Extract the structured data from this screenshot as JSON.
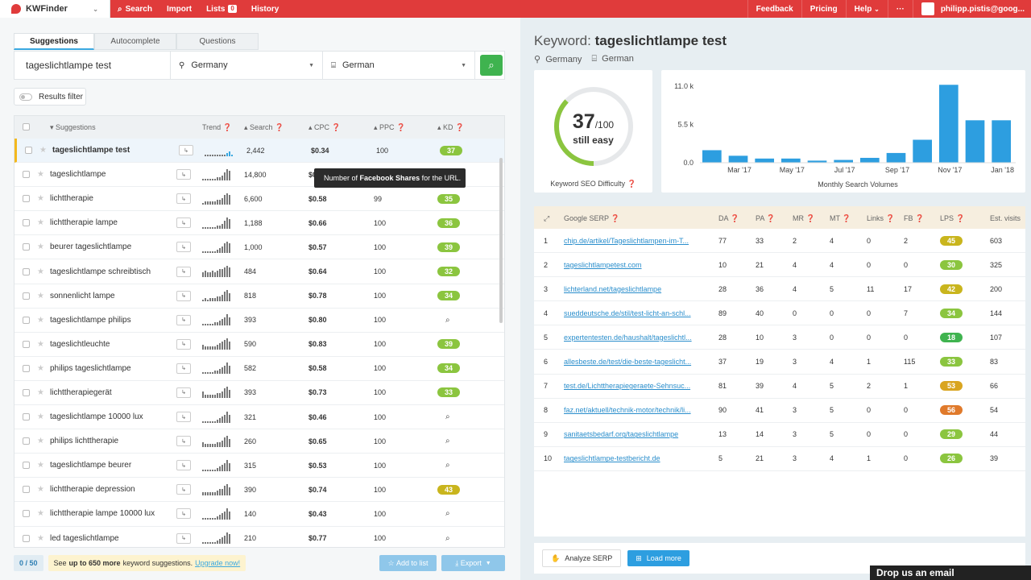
{
  "app": {
    "name": "KWFinder"
  },
  "nav": {
    "search": "Search",
    "import": "Import",
    "lists": "Lists",
    "lists_count": "0",
    "history": "History"
  },
  "nav_right": {
    "feedback": "Feedback",
    "pricing": "Pricing",
    "help": "Help",
    "more": "···",
    "user": "philipp.pistis@goog..."
  },
  "tabs": [
    "Suggestions",
    "Autocomplete",
    "Questions"
  ],
  "search": {
    "keyword": "tageslichtlampe test",
    "location": "Germany",
    "language": "German"
  },
  "results_filter": "Results filter",
  "columns": {
    "suggestions": "Suggestions",
    "trend": "Trend",
    "search": "Search",
    "cpc": "CPC",
    "ppc": "PPC",
    "kd": "KD"
  },
  "keywords": [
    {
      "kw": "tageslichtlampe test",
      "search": "2,442",
      "cpc": "$0.34",
      "ppc": "100",
      "kd": "37",
      "kd_color": "#8bc53f",
      "trend": [
        1,
        1,
        1,
        1,
        1,
        1,
        1,
        1,
        1,
        2,
        3,
        1
      ]
    },
    {
      "kw": "tageslichtlampe",
      "search": "14,800",
      "cpc": "$0.74",
      "ppc": "100",
      "kd": "32",
      "kd_color": "#8bc53f",
      "trend": [
        1,
        1,
        1,
        1,
        1,
        1,
        2,
        2,
        3,
        5,
        7,
        6
      ]
    },
    {
      "kw": "lichttherapie",
      "search": "6,600",
      "cpc": "$0.58",
      "ppc": "99",
      "kd": "35",
      "kd_color": "#8bc53f",
      "trend": [
        1,
        2,
        2,
        2,
        2,
        2,
        3,
        3,
        4,
        6,
        7,
        6
      ]
    },
    {
      "kw": "lichttherapie lampe",
      "search": "1,188",
      "cpc": "$0.66",
      "ppc": "100",
      "kd": "36",
      "kd_color": "#8bc53f",
      "trend": [
        1,
        1,
        1,
        1,
        1,
        1,
        2,
        2,
        3,
        5,
        7,
        6
      ]
    },
    {
      "kw": "beurer tageslichtlampe",
      "search": "1,000",
      "cpc": "$0.57",
      "ppc": "100",
      "kd": "39",
      "kd_color": "#8bc53f",
      "trend": [
        1,
        1,
        1,
        1,
        1,
        1,
        2,
        3,
        4,
        6,
        7,
        6
      ]
    },
    {
      "kw": "tageslichtlampe schreibtisch",
      "search": "484",
      "cpc": "$0.64",
      "ppc": "100",
      "kd": "32",
      "kd_color": "#8bc53f",
      "trend": [
        3,
        4,
        3,
        3,
        4,
        3,
        4,
        5,
        5,
        6,
        7,
        6
      ]
    },
    {
      "kw": "sonnenlicht lampe",
      "search": "818",
      "cpc": "$0.78",
      "ppc": "100",
      "kd": "34",
      "kd_color": "#8bc53f",
      "trend": [
        1,
        2,
        1,
        2,
        2,
        2,
        3,
        3,
        4,
        6,
        7,
        5
      ]
    },
    {
      "kw": "tageslichtlampe philips",
      "search": "393",
      "cpc": "$0.80",
      "ppc": "100",
      "kd": "",
      "kd_color": "",
      "trend": [
        1,
        1,
        1,
        1,
        1,
        2,
        2,
        3,
        4,
        5,
        7,
        5
      ]
    },
    {
      "kw": "tageslichtleuchte",
      "search": "590",
      "cpc": "$0.83",
      "ppc": "100",
      "kd": "39",
      "kd_color": "#8bc53f",
      "trend": [
        3,
        2,
        2,
        2,
        2,
        2,
        3,
        4,
        5,
        6,
        7,
        5
      ]
    },
    {
      "kw": "philips tageslichtlampe",
      "search": "582",
      "cpc": "$0.58",
      "ppc": "100",
      "kd": "34",
      "kd_color": "#8bc53f",
      "trend": [
        1,
        1,
        1,
        1,
        1,
        2,
        2,
        3,
        4,
        5,
        7,
        5
      ]
    },
    {
      "kw": "lichttherapiegerät",
      "search": "393",
      "cpc": "$0.73",
      "ppc": "100",
      "kd": "33",
      "kd_color": "#8bc53f",
      "trend": [
        4,
        2,
        2,
        2,
        2,
        2,
        3,
        3,
        4,
        6,
        7,
        5
      ]
    },
    {
      "kw": "tageslichtlampe 10000 lux",
      "search": "321",
      "cpc": "$0.46",
      "ppc": "100",
      "kd": "",
      "kd_color": "",
      "trend": [
        1,
        1,
        1,
        1,
        1,
        1,
        2,
        3,
        4,
        5,
        7,
        5
      ]
    },
    {
      "kw": "philips lichttherapie",
      "search": "260",
      "cpc": "$0.65",
      "ppc": "100",
      "kd": "",
      "kd_color": "",
      "trend": [
        3,
        2,
        2,
        2,
        2,
        2,
        3,
        3,
        4,
        6,
        7,
        5
      ]
    },
    {
      "kw": "tageslichtlampe beurer",
      "search": "315",
      "cpc": "$0.53",
      "ppc": "100",
      "kd": "",
      "kd_color": "",
      "trend": [
        1,
        1,
        1,
        1,
        1,
        1,
        2,
        3,
        4,
        5,
        7,
        5
      ]
    },
    {
      "kw": "lichttherapie depression",
      "search": "390",
      "cpc": "$0.74",
      "ppc": "100",
      "kd": "43",
      "kd_color": "#c9b51d",
      "trend": [
        2,
        2,
        2,
        2,
        2,
        2,
        3,
        4,
        4,
        6,
        7,
        5
      ]
    },
    {
      "kw": "lichttherapie lampe 10000 lux",
      "search": "140",
      "cpc": "$0.43",
      "ppc": "100",
      "kd": "",
      "kd_color": "",
      "trend": [
        1,
        1,
        1,
        1,
        1,
        1,
        2,
        3,
        4,
        5,
        7,
        5
      ]
    },
    {
      "kw": "led tageslichtlampe",
      "search": "210",
      "cpc": "$0.77",
      "ppc": "100",
      "kd": "",
      "kd_color": "",
      "trend": [
        1,
        1,
        1,
        1,
        1,
        1,
        2,
        3,
        4,
        5,
        7,
        6
      ]
    }
  ],
  "footer": {
    "counter": "0 / 50",
    "upsell_pre": "See",
    "upsell_bold": "up to 650 more",
    "upsell_post": "keyword suggestions.",
    "upsell_link": "Upgrade now!",
    "add_to_list": "Add to list",
    "export": "Export"
  },
  "detail": {
    "keyword_label": "Keyword:",
    "keyword": "tageslichtlampe test",
    "location": "Germany",
    "language": "German"
  },
  "kd": {
    "value": 37,
    "max": "/100",
    "label": "still easy",
    "caption": "Keyword SEO Difficulty",
    "color": "#8bc53f"
  },
  "chart_data": {
    "type": "bar",
    "categories": [
      "Feb '17",
      "Mar '17",
      "Apr '17",
      "May '17",
      "Jun '17",
      "Jul '17",
      "Aug '17",
      "Sep '17",
      "Oct '17",
      "Nov '17",
      "Dec '17",
      "Jan '18"
    ],
    "tick_labels": [
      "Mar '17",
      "May '17",
      "Jul '17",
      "Sep '17",
      "Nov '17",
      "Jan '18"
    ],
    "values": [
      1800,
      1000,
      600,
      600,
      300,
      400,
      700,
      1400,
      3300,
      11200,
      6100,
      6100
    ],
    "yticks": [
      "0.0",
      "5.5 k",
      "11.0 k"
    ],
    "ylim": [
      0,
      11000
    ],
    "xlabel": "Monthly Search Volumes",
    "color": "#2d9ee0"
  },
  "tooltip": {
    "pre": "Number of",
    "bold": "Facebook Shares",
    "post": "for the URL."
  },
  "serp_columns": {
    "serp": "Google SERP",
    "da": "DA",
    "pa": "PA",
    "mr": "MR",
    "mt": "MT",
    "links": "Links",
    "fb": "FB",
    "lps": "LPS",
    "visits": "Est. visits"
  },
  "serp": [
    {
      "n": "1",
      "url": "chip.de/artikel/Tageslichtlampen-im-T...",
      "da": "77",
      "pa": "33",
      "mr": "2",
      "mt": "4",
      "links": "0",
      "fb": "2",
      "lps": "45",
      "lps_color": "#c9b51d",
      "visits": "603"
    },
    {
      "n": "2",
      "url": "tageslichtlampetest.com",
      "da": "10",
      "pa": "21",
      "mr": "4",
      "mt": "4",
      "links": "0",
      "fb": "0",
      "lps": "30",
      "lps_color": "#8bc53f",
      "visits": "325"
    },
    {
      "n": "3",
      "url": "lichterland.net/tageslichtlampe",
      "da": "28",
      "pa": "36",
      "mr": "4",
      "mt": "5",
      "links": "11",
      "fb": "17",
      "lps": "42",
      "lps_color": "#c9b51d",
      "visits": "200"
    },
    {
      "n": "4",
      "url": "sueddeutsche.de/stil/test-licht-an-schl...",
      "da": "89",
      "pa": "40",
      "mr": "0",
      "mt": "0",
      "links": "0",
      "fb": "7",
      "lps": "34",
      "lps_color": "#8bc53f",
      "visits": "144"
    },
    {
      "n": "5",
      "url": "expertentesten.de/haushalt/tageslichtl...",
      "da": "28",
      "pa": "10",
      "mr": "3",
      "mt": "0",
      "links": "0",
      "fb": "0",
      "lps": "18",
      "lps_color": "#3fb34f",
      "visits": "107"
    },
    {
      "n": "6",
      "url": "allesbeste.de/test/die-beste-tageslicht...",
      "da": "37",
      "pa": "19",
      "mr": "3",
      "mt": "4",
      "links": "1",
      "fb": "115",
      "lps": "33",
      "lps_color": "#8bc53f",
      "visits": "83"
    },
    {
      "n": "7",
      "url": "test.de/Lichttherapiegeraete-Sehnsuc...",
      "da": "81",
      "pa": "39",
      "mr": "4",
      "mt": "5",
      "links": "2",
      "fb": "1",
      "lps": "53",
      "lps_color": "#d9a520",
      "visits": "66"
    },
    {
      "n": "8",
      "url": "faz.net/aktuell/technik-motor/technik/li...",
      "da": "90",
      "pa": "41",
      "mr": "3",
      "mt": "5",
      "links": "0",
      "fb": "0",
      "lps": "56",
      "lps_color": "#e07a2b",
      "visits": "54"
    },
    {
      "n": "9",
      "url": "sanitaetsbedarf.org/tageslichtlampe",
      "da": "13",
      "pa": "14",
      "mr": "3",
      "mt": "5",
      "links": "0",
      "fb": "0",
      "lps": "29",
      "lps_color": "#8bc53f",
      "visits": "44"
    },
    {
      "n": "10",
      "url": "tageslichtlampe-testbericht.de",
      "da": "5",
      "pa": "21",
      "mr": "3",
      "mt": "4",
      "links": "1",
      "fb": "0",
      "lps": "26",
      "lps_color": "#8bc53f",
      "visits": "39"
    }
  ],
  "serp_footer": {
    "analyze": "Analyze SERP",
    "load_more": "Load more"
  },
  "email_widget": "Drop us an email"
}
